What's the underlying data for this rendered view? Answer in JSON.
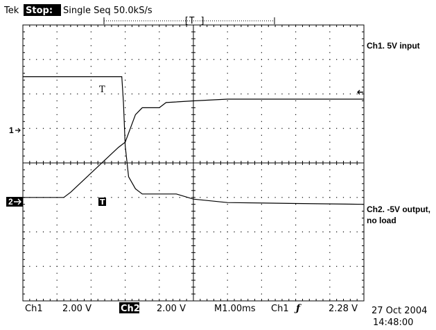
{
  "header": {
    "brand": "Tek",
    "state": "Stop:",
    "acq": "Single Seq  50.0kS/s",
    "trig_marker": "[T  ]"
  },
  "channels": {
    "ch1": {
      "marker": "1",
      "label": "Ch1. 5V input"
    },
    "ch2": {
      "marker": "2",
      "label_line1": "Ch2. -5V output,",
      "label_line2": "no load"
    }
  },
  "trigger_point_label": "T",
  "footer": {
    "ch1": "Ch1",
    "ch1_scale": "2.00 V",
    "ch2": "Ch2",
    "ch2_scale": "2.00 V",
    "timebase": "M1.00ms",
    "trig_src": "Ch1",
    "trig_slope": "ƒ",
    "trig_level": "2.28 V",
    "date": "27 Oct 2004",
    "time": "14:48:00"
  },
  "chart_data": {
    "type": "line",
    "x_unit": "ms",
    "x_divisions": 10,
    "y_divisions": 8,
    "time_per_div_ms": 1.0,
    "volts_per_div": 2.0,
    "series": [
      {
        "name": "Ch1. 5V input",
        "reference_div": -1.0,
        "points": [
          [
            0.0,
            0.0
          ],
          [
            1.2,
            0.0
          ],
          [
            1.4,
            0.3
          ],
          [
            2.8,
            2.9
          ],
          [
            3.0,
            3.2
          ],
          [
            3.3,
            4.8
          ],
          [
            3.5,
            5.2
          ],
          [
            4.0,
            5.2
          ],
          [
            4.2,
            5.5
          ],
          [
            5.0,
            5.6
          ],
          [
            6.0,
            5.7
          ],
          [
            8.0,
            5.7
          ],
          [
            10.0,
            5.7
          ]
        ],
        "color": "#000000"
      },
      {
        "name": "Ch2. -5V output, no load",
        "reference_div": 2.5,
        "points": [
          [
            0.0,
            0.0
          ],
          [
            2.9,
            0.0
          ],
          [
            2.95,
            -1.5
          ],
          [
            3.0,
            -4.0
          ],
          [
            3.1,
            -5.8
          ],
          [
            3.3,
            -6.5
          ],
          [
            3.5,
            -6.8
          ],
          [
            4.5,
            -6.8
          ],
          [
            5.0,
            -7.1
          ],
          [
            6.0,
            -7.3
          ],
          [
            8.0,
            -7.35
          ],
          [
            10.0,
            -7.4
          ]
        ],
        "color": "#000000"
      }
    ]
  }
}
